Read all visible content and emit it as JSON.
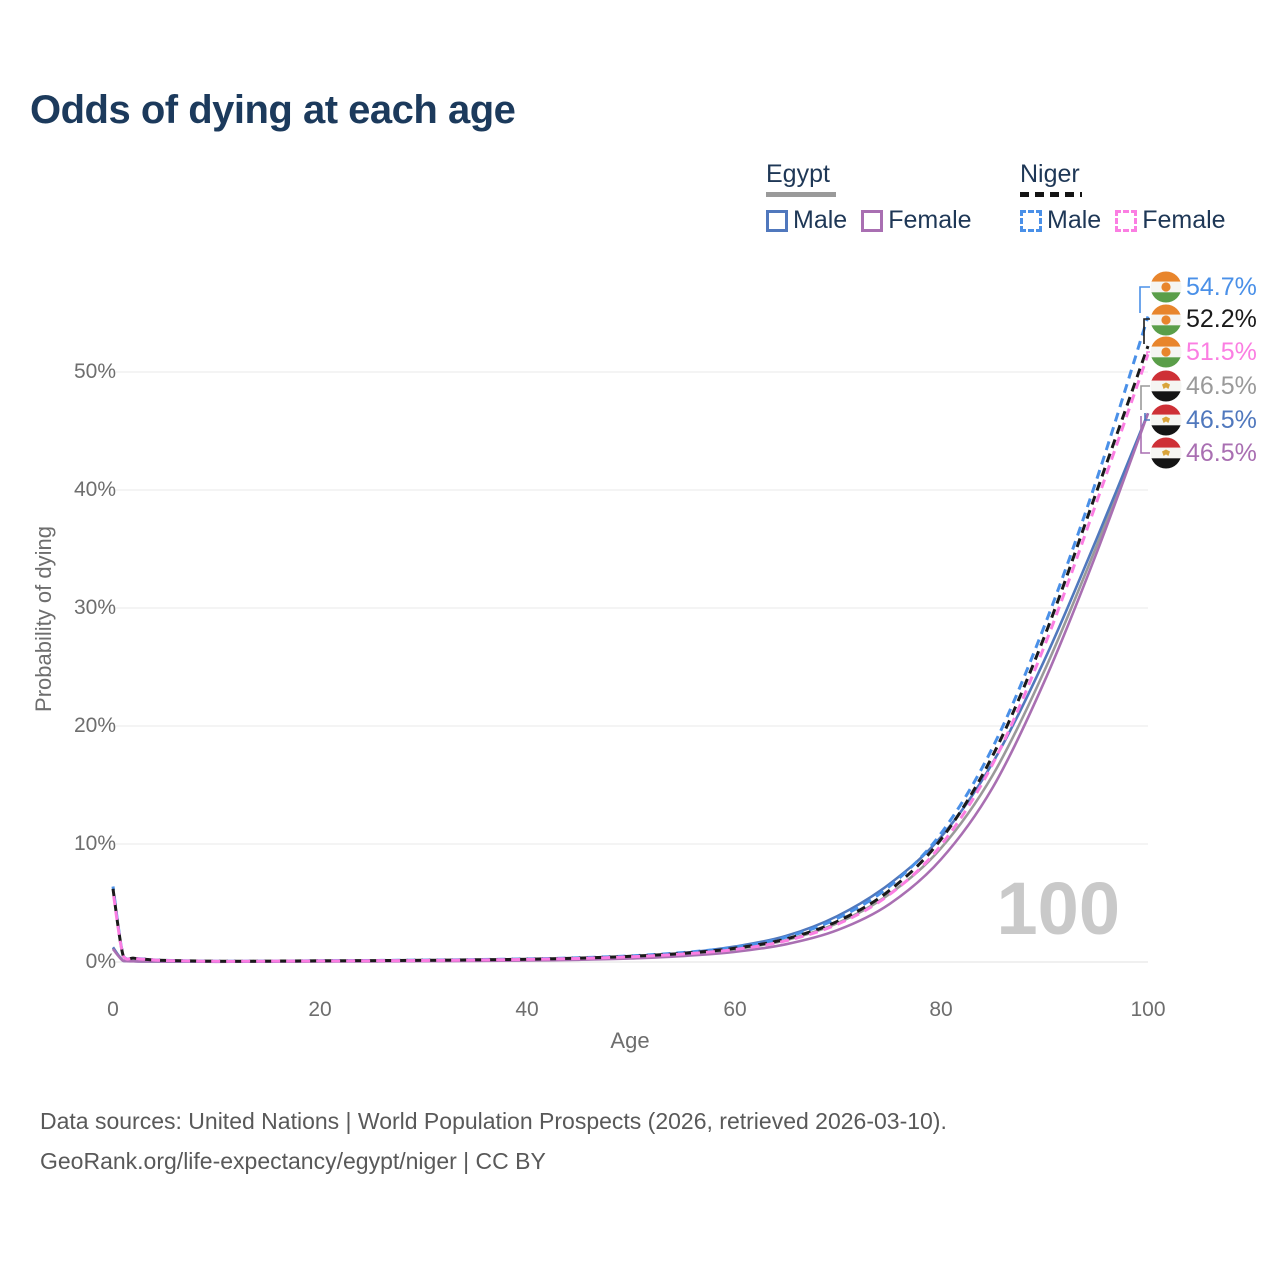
{
  "title": "Odds of dying at each age",
  "legend": {
    "egypt": {
      "label": "Egypt",
      "male": "Male",
      "female": "Female"
    },
    "niger": {
      "label": "Niger",
      "male": "Male",
      "female": "Female"
    }
  },
  "footer": {
    "line1": "Data sources: United Nations | World Population Prospects (2026, retrieved 2026-03-10).",
    "line2": "GeoRank.org/life-expectancy/egypt/niger | CC BY"
  },
  "flags": {
    "niger": {
      "top": "#e8852c",
      "middle": "#f5f5f2",
      "bottom": "#5a9e49",
      "emblem": "#e8852c"
    },
    "egypt": {
      "top": "#ce3036",
      "middle": "#f5f5f2",
      "bottom": "#141414",
      "emblem": "#d9a43b"
    }
  },
  "chart_data": {
    "type": "line",
    "title": "Odds of dying at each age",
    "xlabel": "Age",
    "ylabel": "Probability of dying",
    "x_ticks": [
      "0",
      "20",
      "40",
      "60",
      "80",
      "100"
    ],
    "y_ticks": [
      "0%",
      "10%",
      "20%",
      "30%",
      "40%",
      "50%"
    ],
    "xlim": [
      0,
      100
    ],
    "ylim_pct": [
      0,
      57
    ],
    "grid": "horizontal",
    "legend_position": "top-right",
    "watermark_age": "100",
    "x_ages": [
      0,
      1,
      2,
      3,
      4,
      5,
      10,
      15,
      20,
      25,
      30,
      35,
      40,
      45,
      50,
      55,
      60,
      65,
      70,
      75,
      80,
      85,
      90,
      95,
      100
    ],
    "series": [
      {
        "key": "egypt_both",
        "country": "Egypt",
        "color": "#9a9a9a",
        "dash": false,
        "end_value_pct": 46.5,
        "values": [
          1.18,
          0.1,
          0.065,
          0.048,
          0.042,
          0.038,
          0.025,
          0.04,
          0.055,
          0.07,
          0.09,
          0.115,
          0.16,
          0.235,
          0.375,
          0.62,
          1.07,
          1.85,
          3.3,
          5.75,
          9.65,
          15.85,
          24.7,
          35.2,
          46.5
        ]
      },
      {
        "key": "egypt_male",
        "country": "Egypt",
        "legend_label": "Male",
        "color": "#5078bd",
        "dash": false,
        "end_value_pct": 46.5,
        "values": [
          1.25,
          0.1,
          0.07,
          0.05,
          0.045,
          0.04,
          0.03,
          0.05,
          0.07,
          0.09,
          0.11,
          0.14,
          0.19,
          0.28,
          0.45,
          0.75,
          1.3,
          2.2,
          3.9,
          6.6,
          10.6,
          16.9,
          25.6,
          35.8,
          46.5
        ]
      },
      {
        "key": "egypt_female",
        "country": "Egypt",
        "legend_label": "Female",
        "color": "#a96fb2",
        "dash": false,
        "end_value_pct": 46.5,
        "values": [
          1.1,
          0.09,
          0.06,
          0.045,
          0.04,
          0.035,
          0.02,
          0.03,
          0.04,
          0.05,
          0.07,
          0.09,
          0.13,
          0.19,
          0.3,
          0.5,
          0.85,
          1.5,
          2.7,
          4.9,
          8.7,
          14.8,
          23.8,
          34.6,
          46.5
        ]
      },
      {
        "key": "niger_male",
        "country": "Niger",
        "legend_label": "Male",
        "color": "#4a90e8",
        "dash": true,
        "end_value_pct": 54.7,
        "values": [
          6.4,
          0.5,
          0.33,
          0.25,
          0.18,
          0.14,
          0.07,
          0.08,
          0.11,
          0.13,
          0.16,
          0.2,
          0.26,
          0.36,
          0.52,
          0.8,
          1.25,
          2.1,
          3.7,
          6.4,
          10.9,
          18.2,
          28.5,
          40.8,
          54.7
        ]
      },
      {
        "key": "niger_both",
        "country": "Niger",
        "color": "#1a1a1a",
        "dash": true,
        "end_value_pct": 52.2,
        "values": [
          6.2,
          0.49,
          0.32,
          0.24,
          0.175,
          0.135,
          0.065,
          0.075,
          0.1,
          0.12,
          0.145,
          0.185,
          0.24,
          0.33,
          0.48,
          0.73,
          1.15,
          1.95,
          3.45,
          6.05,
          10.4,
          17.5,
          27.6,
          39.8,
          52.2
        ]
      },
      {
        "key": "niger_female",
        "country": "Niger",
        "legend_label": "Female",
        "color": "#fb7ee2",
        "dash": true,
        "end_value_pct": 51.5,
        "values": [
          6.0,
          0.48,
          0.31,
          0.23,
          0.17,
          0.13,
          0.06,
          0.07,
          0.09,
          0.11,
          0.13,
          0.17,
          0.22,
          0.3,
          0.44,
          0.67,
          1.05,
          1.8,
          3.2,
          5.7,
          9.9,
          16.8,
          26.8,
          38.9,
          51.5
        ]
      }
    ],
    "end_labels": [
      {
        "series": "niger_male",
        "country": "Niger",
        "value_label": "54.7%"
      },
      {
        "series": "niger_both",
        "country": "Niger",
        "value_label": "52.2%"
      },
      {
        "series": "niger_female",
        "country": "Niger",
        "value_label": "51.5%"
      },
      {
        "series": "egypt_both",
        "country": "Egypt",
        "value_label": "46.5%"
      },
      {
        "series": "egypt_male",
        "country": "Egypt",
        "value_label": "46.5%"
      },
      {
        "series": "egypt_female",
        "country": "Egypt",
        "value_label": "46.5%"
      }
    ]
  }
}
